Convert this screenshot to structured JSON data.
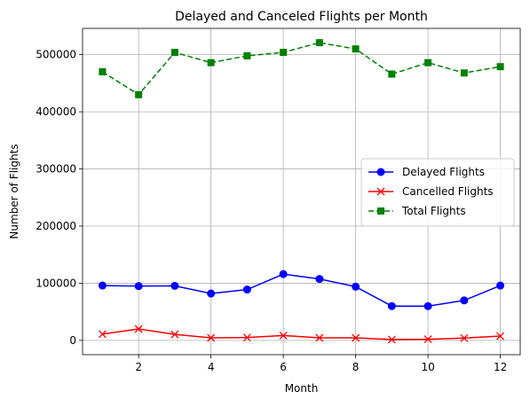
{
  "chart_data": {
    "type": "line",
    "title": "Delayed and Canceled Flights per Month",
    "xlabel": "Month",
    "ylabel": "Number of Flights",
    "x": [
      1,
      2,
      3,
      4,
      5,
      6,
      7,
      8,
      9,
      10,
      11,
      12
    ],
    "xlim": [
      0.45,
      12.55
    ],
    "ylim": [
      -25000,
      546000
    ],
    "xticks": [
      2,
      4,
      6,
      8,
      10,
      12
    ],
    "yticks": [
      0,
      100000,
      200000,
      300000,
      400000,
      500000
    ],
    "grid": true,
    "legend_position": "center-right",
    "series": [
      {
        "name": "Delayed Flights",
        "color": "#0000ff",
        "marker": "circle",
        "linestyle": "solid",
        "values": [
          96000,
          95000,
          95500,
          82000,
          89000,
          116000,
          107500,
          94000,
          60000,
          60000,
          70000,
          96000
        ]
      },
      {
        "name": "Cancelled Flights",
        "color": "#ff0000",
        "marker": "x",
        "linestyle": "solid",
        "values": [
          11000,
          20000,
          10500,
          4500,
          5000,
          8500,
          4500,
          4500,
          1500,
          2000,
          4000,
          7500
        ]
      },
      {
        "name": "Total Flights",
        "color": "#008000",
        "marker": "square",
        "linestyle": "dashed",
        "values": [
          470000,
          430000,
          504000,
          486000,
          498000,
          504000,
          521000,
          510000,
          466000,
          486000,
          468000,
          479000
        ]
      }
    ]
  }
}
